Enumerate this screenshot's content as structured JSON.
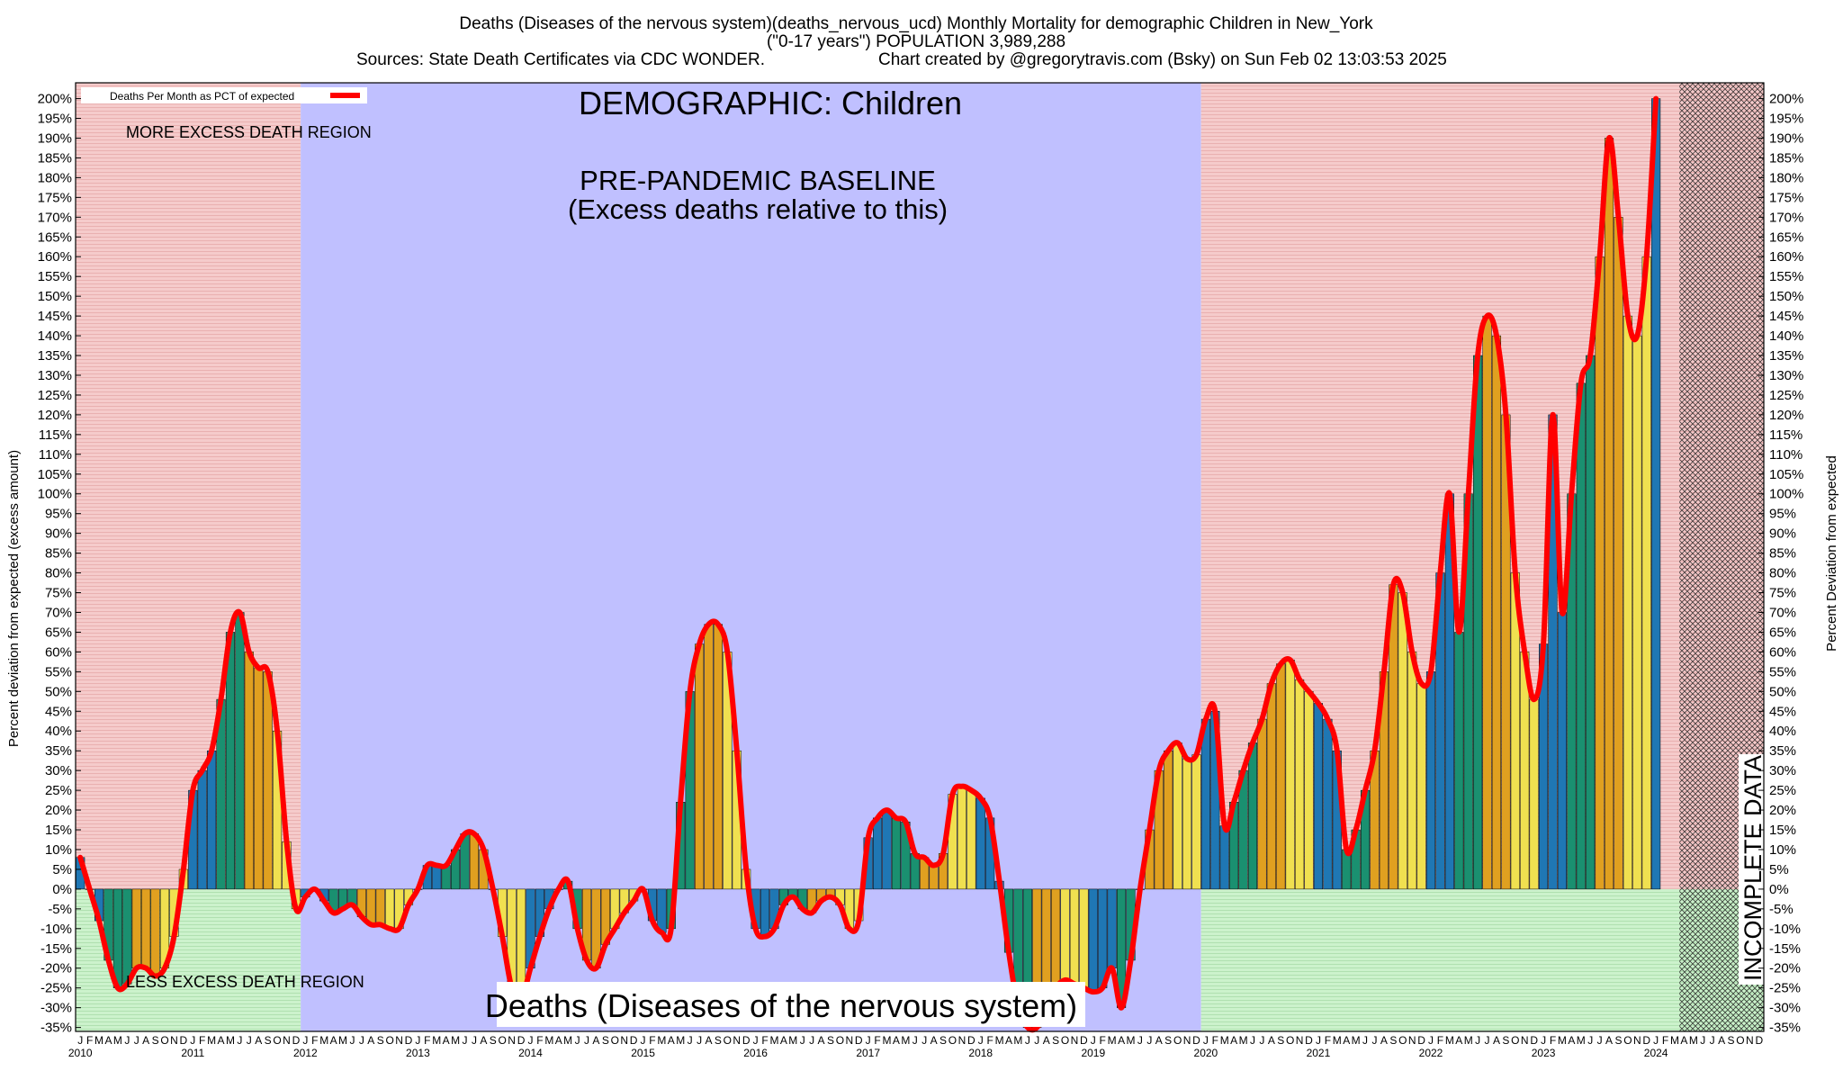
{
  "header": {
    "line1": "Deaths (Diseases of the nervous system)(deaths_nervous_ucd) Monthly Mortality for demographic Children in New_York",
    "line2": "(\"0-17 years\") POPULATION 3,989,288",
    "line3_left": "Sources: State Death Certificates via CDC WONDER.",
    "line3_right": "Chart created by @gregorytravis.com (Bsky) on Sun Feb 02 13:03:53 2025"
  },
  "annotations": {
    "demographic": "DEMOGRAPHIC: Children",
    "baseline_1": "PRE-PANDEMIC BASELINE",
    "baseline_2": "(Excess deaths relative to this)",
    "more_region": "MORE EXCESS DEATH REGION",
    "less_region": "LESS EXCESS DEATH REGION",
    "cause": "Deaths (Diseases of the nervous system)",
    "incomplete": "INCOMPLETE DATA"
  },
  "legend": {
    "label": "Deaths Per Month as PCT of expected",
    "line_color": "#ff0000"
  },
  "colors": {
    "excess_region": "#f4c4c4",
    "baseline_region": "#c0c0ff",
    "less_region": "#c8f0c8",
    "line": "#ff0000",
    "bar_blue": "#1f77b4",
    "bar_green": "#1a9070",
    "bar_orange": "#e0a020",
    "bar_yellow": "#f0e050"
  },
  "chart_data": {
    "type": "bar",
    "title": "Deaths (Diseases of the nervous system)(deaths_nervous_ucd) Monthly Mortality for demographic Children in New_York",
    "ylabel_left": "Percent deviation from expected (excess amount)",
    "ylabel_right": "Percent Deviation from expected",
    "ylim": [
      -36,
      204
    ],
    "y_ticks": [
      "200%",
      "195%",
      "190%",
      "185%",
      "180%",
      "175%",
      "170%",
      "165%",
      "160%",
      "155%",
      "150%",
      "145%",
      "140%",
      "135%",
      "130%",
      "125%",
      "120%",
      "115%",
      "110%",
      "105%",
      "100%",
      "95%",
      "90%",
      "85%",
      "80%",
      "75%",
      "70%",
      "65%",
      "60%",
      "55%",
      "50%",
      "45%",
      "40%",
      "35%",
      "30%",
      "25%",
      "20%",
      "15%",
      "10%",
      "5%",
      "0%",
      "-5%",
      "-10%",
      "-15%",
      "-20%",
      "-25%",
      "-30%",
      "-35%"
    ],
    "month_letters": [
      "J",
      "F",
      "M",
      "A",
      "M",
      "J",
      "J",
      "A",
      "S",
      "O",
      "N",
      "D"
    ],
    "years": [
      "2010",
      "2011",
      "2012",
      "2013",
      "2014",
      "2015",
      "2016",
      "2017",
      "2018",
      "2019",
      "2020",
      "2021",
      "2022",
      "2023",
      "2024"
    ],
    "baseline_period": [
      "2012-01",
      "2019-12"
    ],
    "incomplete_period": [
      "2024-04",
      "2024-12"
    ],
    "series": [
      {
        "name": "Deaths Per Month as PCT of expected",
        "start": "2010-01",
        "values": [
          8,
          0,
          -8,
          -18,
          -25,
          -24,
          -20,
          -20,
          -22,
          -20,
          -12,
          5,
          25,
          30,
          35,
          48,
          65,
          70,
          60,
          56,
          55,
          40,
          12,
          -5,
          -2,
          0,
          -3,
          -6,
          -5,
          -4,
          -7,
          -9,
          -9,
          -10,
          -10,
          -4,
          0,
          6,
          6,
          6,
          10,
          14,
          14,
          10,
          0,
          -12,
          -25,
          -28,
          -20,
          -12,
          -5,
          0,
          2,
          -10,
          -18,
          -20,
          -14,
          -10,
          -6,
          -3,
          0,
          -8,
          -11,
          -10,
          22,
          50,
          62,
          67,
          67,
          60,
          35,
          5,
          -10,
          -12,
          -10,
          -4,
          -2,
          -5,
          -6,
          -3,
          -2,
          -4,
          -10,
          -8,
          13,
          18,
          20,
          18,
          17,
          9,
          8,
          6,
          9,
          24,
          26,
          25,
          23,
          18,
          2,
          -16,
          -30,
          -35,
          -35,
          -30,
          -25,
          -23,
          -24,
          -25,
          -26,
          -25,
          -20,
          -30,
          -18,
          0,
          15,
          30,
          35,
          37,
          33,
          34,
          43,
          45,
          16,
          22,
          30,
          37,
          43,
          52,
          57,
          58,
          53,
          50,
          47,
          43,
          35,
          10,
          15,
          25,
          35,
          55,
          77,
          75,
          60,
          52,
          55,
          80,
          100,
          65,
          100,
          135,
          145,
          140,
          120,
          80,
          60,
          48,
          62,
          120,
          70,
          100,
          128,
          135,
          160,
          190,
          170,
          145,
          140,
          160,
          200
        ]
      }
    ]
  }
}
